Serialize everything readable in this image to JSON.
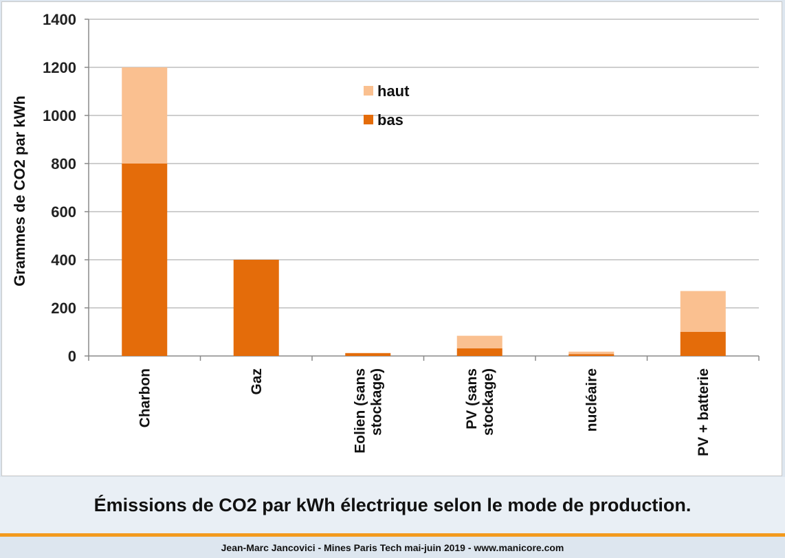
{
  "chart_data": {
    "type": "bar",
    "stacked": true,
    "categories": [
      "Charbon",
      "Gaz",
      "Eolien (sans stockage)",
      "PV (sans stockage)",
      "nucléaire",
      "PV + batterie"
    ],
    "category_lines": [
      [
        "Charbon"
      ],
      [
        "Gaz"
      ],
      [
        "Eolien (sans",
        "stockage)"
      ],
      [
        "PV (sans",
        "stockage)"
      ],
      [
        "nucléaire"
      ],
      [
        "PV + batterie"
      ]
    ],
    "series": [
      {
        "name": "bas",
        "color": "#e46c0a",
        "values": [
          800,
          400,
          12,
          32,
          8,
          100
        ]
      },
      {
        "name": "haut",
        "color": "#fac090",
        "values": [
          400,
          0,
          0,
          52,
          10,
          170
        ]
      }
    ],
    "ylabel": "Grammes de CO2 par kWh",
    "ylim": [
      0,
      1400
    ],
    "yticks": [
      0,
      200,
      400,
      600,
      800,
      1000,
      1200,
      1400
    ],
    "grid": true,
    "legend": "top-center",
    "legend_order": [
      "haut",
      "bas"
    ]
  },
  "caption": "Émissions de CO2 par kWh électrique selon le mode de production.",
  "credit": "Jean-Marc Jancovici - Mines Paris Tech mai-juin 2019 - www.manicore.com",
  "colors": {
    "accent_rule": "#f39a1e",
    "band": "#e9eff5"
  }
}
